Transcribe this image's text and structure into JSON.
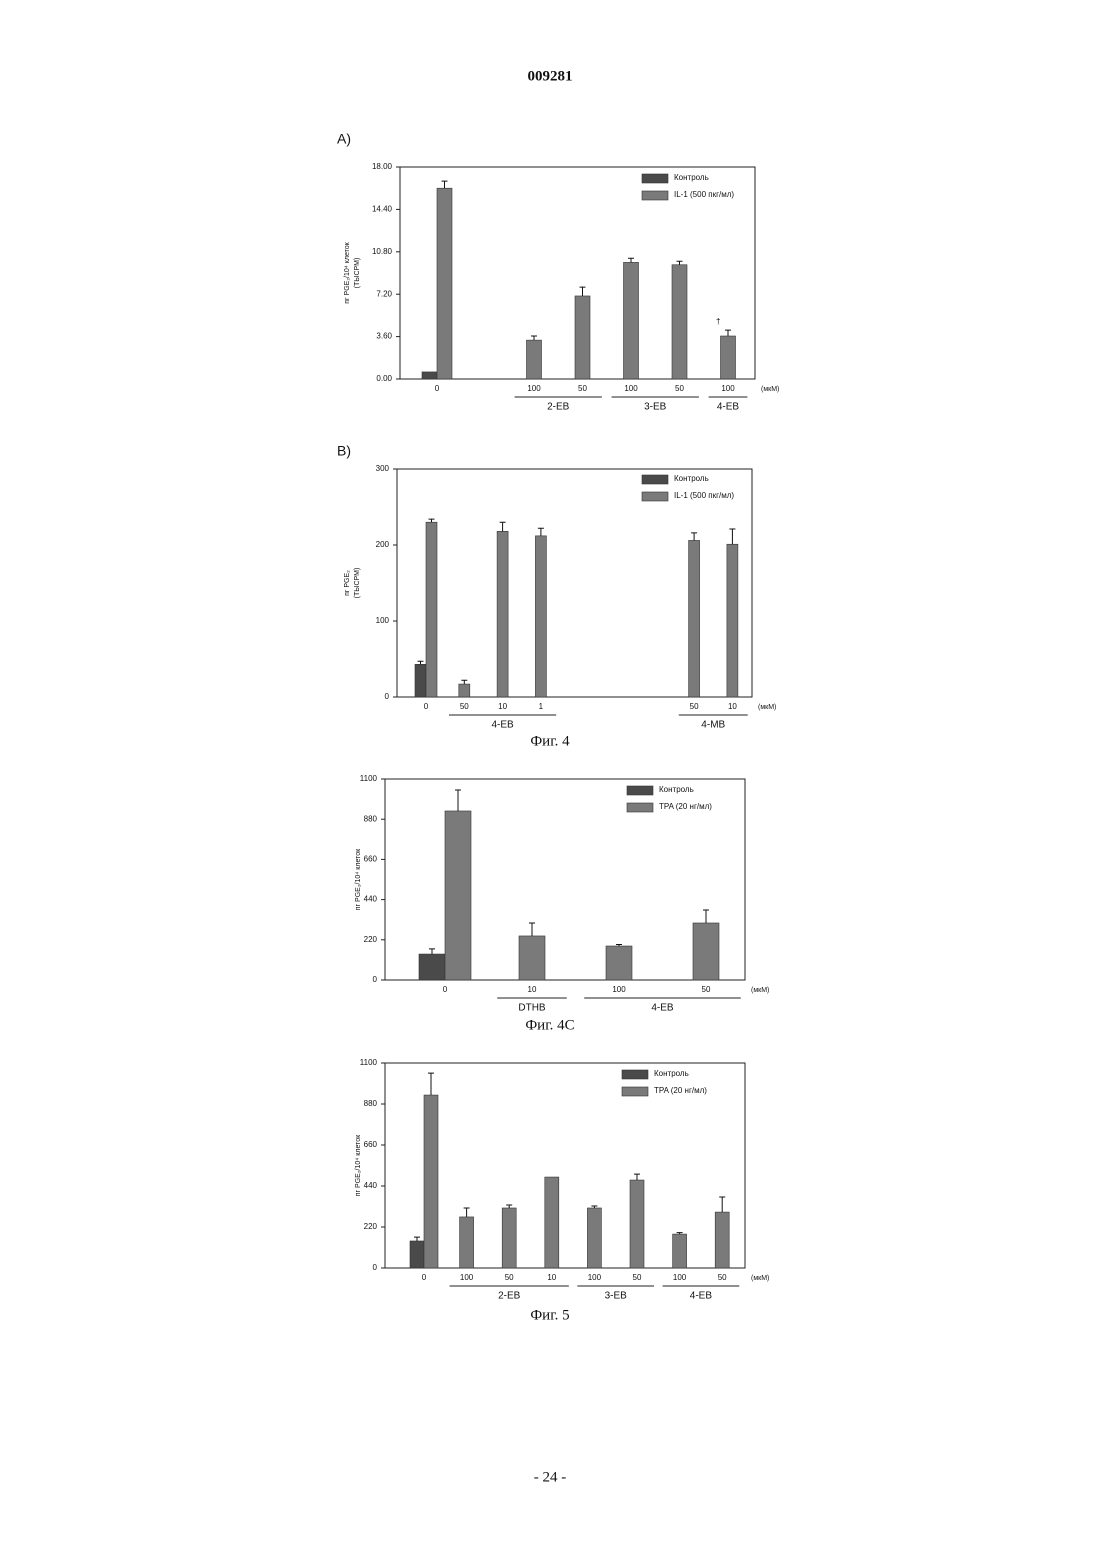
{
  "header": {
    "number": "009281"
  },
  "footer": {
    "page": "- 24 -"
  },
  "chart_data": [
    {
      "type": "bar",
      "panel": "A)",
      "y_label": [
        "пг PGE₂/10⁴ клеток",
        "(ТЫСРМ)"
      ],
      "categories": [
        "0",
        null,
        "100",
        "50",
        "100",
        "50",
        "100"
      ],
      "x_unit": "(мкМ)",
      "series": [
        {
          "name": "Контроль",
          "color": "#4a4a4a",
          "values": [
            0.6,
            null,
            null,
            null,
            null,
            null,
            null
          ],
          "errors": [
            null,
            null,
            null,
            null,
            null,
            null,
            null
          ]
        },
        {
          "name": "IL-1 (500 пкг/мл)",
          "color": "#7a7a7a",
          "values": [
            16.2,
            null,
            3.3,
            7.05,
            9.9,
            9.7,
            3.65
          ],
          "errors": [
            0.6,
            null,
            0.35,
            0.75,
            0.35,
            0.3,
            0.5
          ]
        }
      ],
      "groups": [
        {
          "label": "2-EB",
          "span": [
            2,
            3
          ]
        },
        {
          "label": "3-EB",
          "span": [
            4,
            5
          ]
        },
        {
          "label": "4-EB",
          "span": [
            6,
            6
          ]
        }
      ],
      "annotations": [
        {
          "text": "†",
          "at": 6
        }
      ],
      "ylim": [
        0,
        18
      ],
      "yticks": [
        {
          "value": 0,
          "label": "0.00"
        },
        {
          "value": 3.6,
          "label": "3.60"
        },
        {
          "value": 7.2,
          "label": "7.20"
        },
        {
          "value": 10.8,
          "label": "10.80"
        },
        {
          "value": 14.4,
          "label": "14.40"
        },
        {
          "value": 18,
          "label": "18.00"
        }
      ]
    },
    {
      "type": "bar",
      "panel": "B)",
      "y_label": [
        "пг PGE₂",
        "(ТЫСРМ)"
      ],
      "categories": [
        "0",
        "50",
        "10",
        "1",
        null,
        null,
        null,
        "50",
        "10"
      ],
      "x_unit": "(мкМ)",
      "series": [
        {
          "name": "Контроль",
          "color": "#4a4a4a",
          "values": [
            43,
            null,
            null,
            null,
            null,
            null,
            null,
            null,
            null
          ],
          "errors": [
            4,
            null,
            null,
            null,
            null,
            null,
            null,
            null,
            null
          ]
        },
        {
          "name": "IL-1 (500 пкг/мл)",
          "color": "#7a7a7a",
          "values": [
            230,
            17,
            218,
            212,
            null,
            null,
            null,
            206,
            201
          ],
          "errors": [
            4,
            5,
            12,
            10,
            null,
            null,
            null,
            10,
            20
          ]
        }
      ],
      "groups": [
        {
          "label": "4-EB",
          "span": [
            1,
            3
          ]
        },
        {
          "label": "4-MB",
          "span": [
            7,
            8
          ]
        }
      ],
      "caption": "Фиг. 4",
      "ylim": [
        0,
        300
      ],
      "yticks": [
        0,
        100,
        200,
        300
      ]
    },
    {
      "type": "bar",
      "y_label": [
        "пг PGE₂/10⁴ клеток"
      ],
      "categories": [
        "0",
        "10",
        "100",
        "50"
      ],
      "x_unit": "(мкМ)",
      "series": [
        {
          "name": "Контроль",
          "color": "#4a4a4a",
          "values": [
            142,
            null,
            null,
            null
          ],
          "errors": [
            28,
            null,
            null,
            null
          ]
        },
        {
          "name": "TPA (20 нг/мл)",
          "color": "#7a7a7a",
          "values": [
            925,
            241,
            186,
            312
          ],
          "errors": [
            115,
            71,
            8,
            71
          ]
        }
      ],
      "groups": [
        {
          "label": "DTHB",
          "span": [
            1,
            1
          ]
        },
        {
          "label": "4-EB",
          "span": [
            2,
            3
          ]
        }
      ],
      "caption": "Фиг. 4C",
      "ylim": [
        0,
        1100
      ],
      "yticks": [
        0,
        220,
        440,
        660,
        880,
        1100
      ]
    },
    {
      "type": "bar",
      "y_label": [
        "пг PGE₂/10⁴ клеток"
      ],
      "categories": [
        "0",
        "100",
        "50",
        "10",
        "100",
        "50",
        "100",
        "50"
      ],
      "x_unit": "(мкМ)",
      "series": [
        {
          "name": "Контроль",
          "color": "#4a4a4a",
          "values": [
            145,
            null,
            null,
            null,
            null,
            null,
            null,
            null
          ],
          "errors": [
            21,
            null,
            null,
            null,
            null,
            null,
            null,
            null
          ]
        },
        {
          "name": "TPA (20 нг/мл)",
          "color": "#7a7a7a",
          "values": [
            928,
            274,
            322,
            488,
            322,
            472,
            182,
            300
          ],
          "errors": [
            118,
            48,
            16,
            null,
            11,
            32,
            8,
            81
          ]
        }
      ],
      "groups": [
        {
          "label": "2-EB",
          "span": [
            1,
            3
          ]
        },
        {
          "label": "3-EB",
          "span": [
            4,
            5
          ]
        },
        {
          "label": "4-EB",
          "span": [
            6,
            7
          ]
        }
      ],
      "caption": "Фиг. 5",
      "ylim": [
        0,
        1100
      ],
      "yticks": [
        0,
        220,
        440,
        660,
        880,
        1100
      ]
    }
  ]
}
